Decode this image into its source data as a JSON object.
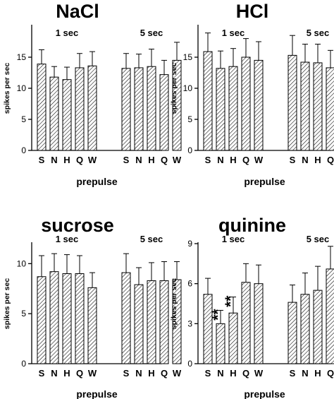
{
  "chart_data": [
    {
      "type": "bar",
      "title": "NaCl",
      "ylabel": "spikes per sec",
      "xlabel": "prepulse",
      "ylim": [
        0,
        20
      ],
      "yticks": [
        0,
        5,
        10,
        15
      ],
      "categories": [
        "S",
        "N",
        "H",
        "Q",
        "W"
      ],
      "groups": [
        {
          "label": "1 sec",
          "values": [
            13.9,
            11.8,
            11.4,
            13.3,
            13.6
          ],
          "errors": [
            2.3,
            1.7,
            2.0,
            2.3,
            2.3
          ],
          "annotations": [
            "",
            "",
            "",
            "",
            ""
          ]
        },
        {
          "label": "5 sec",
          "values": [
            13.2,
            13.3,
            13.5,
            12.2,
            14.5
          ],
          "errors": [
            2.4,
            2.2,
            2.8,
            2.3,
            2.9
          ],
          "annotations": [
            "",
            "",
            "",
            "",
            ""
          ]
        }
      ]
    },
    {
      "type": "bar",
      "title": "HCl",
      "ylabel": "spikes per sec",
      "xlabel": "prepulse",
      "ylim": [
        0,
        20
      ],
      "yticks": [
        0,
        5,
        10,
        15
      ],
      "categories": [
        "S",
        "N",
        "H",
        "Q",
        "W"
      ],
      "groups": [
        {
          "label": "1 sec",
          "values": [
            15.9,
            13.2,
            13.5,
            15.0,
            14.5
          ],
          "errors": [
            3.0,
            2.8,
            2.9,
            3.0,
            3.0
          ],
          "annotations": [
            "",
            "",
            "",
            "",
            ""
          ]
        },
        {
          "label": "5 sec",
          "values": [
            15.3,
            14.2,
            14.1,
            13.3,
            13.3
          ],
          "errors": [
            3.2,
            2.9,
            3.0,
            2.8,
            2.6
          ],
          "annotations": [
            "",
            "",
            "",
            "",
            ""
          ]
        }
      ]
    },
    {
      "type": "bar",
      "title": "sucrose",
      "ylabel": "spikes per sec",
      "xlabel": "prepulse",
      "ylim": [
        0,
        12
      ],
      "yticks": [
        0,
        5,
        10
      ],
      "categories": [
        "S",
        "N",
        "H",
        "Q",
        "W"
      ],
      "groups": [
        {
          "label": "1 sec",
          "values": [
            8.7,
            9.2,
            9.0,
            9.0,
            7.6
          ],
          "errors": [
            2.1,
            1.8,
            1.9,
            1.8,
            1.5
          ],
          "annotations": [
            "",
            "",
            "",
            "",
            ""
          ]
        },
        {
          "label": "5 sec",
          "values": [
            9.1,
            7.9,
            8.3,
            8.3,
            8.4
          ],
          "errors": [
            1.9,
            1.7,
            1.8,
            1.9,
            1.8
          ],
          "annotations": [
            "",
            "",
            "",
            "",
            ""
          ]
        }
      ]
    },
    {
      "type": "bar",
      "title": "quinine",
      "ylabel": "spikes per sec",
      "xlabel": "prepulse",
      "ylim": [
        0,
        9
      ],
      "yticks": [
        0,
        3,
        6,
        9
      ],
      "categories": [
        "S",
        "N",
        "H",
        "Q",
        "W"
      ],
      "groups": [
        {
          "label": "1 sec",
          "values": [
            5.2,
            3.0,
            3.8,
            6.1,
            6.0
          ],
          "errors": [
            1.2,
            1.0,
            1.2,
            1.4,
            1.4
          ],
          "annotations": [
            "",
            "**",
            "**",
            "",
            ""
          ]
        },
        {
          "label": "5 sec",
          "values": [
            4.6,
            5.2,
            5.5,
            7.1,
            6.5
          ],
          "errors": [
            1.3,
            1.6,
            1.8,
            1.7,
            1.3
          ],
          "annotations": [
            "",
            "",
            "",
            "",
            ""
          ]
        }
      ]
    }
  ]
}
